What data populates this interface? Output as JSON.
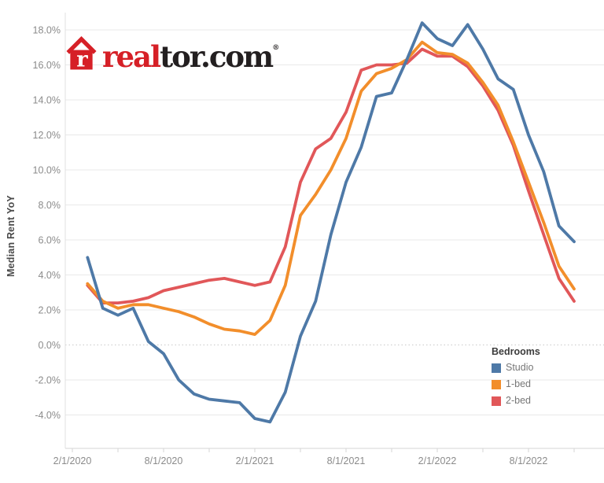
{
  "logo": {
    "brand_red": "real",
    "brand_black": "tor.com",
    "registered_mark": "®",
    "icon_color": "#d62027"
  },
  "y_axis": {
    "title": "Median Rent YoY"
  },
  "legend": {
    "title": "Bedrooms",
    "items": [
      {
        "label": "Studio",
        "color": "#4e79a7"
      },
      {
        "label": "1-bed",
        "color": "#f28e2b"
      },
      {
        "label": "2-bed",
        "color": "#e15759"
      }
    ]
  },
  "chart_data": {
    "type": "line",
    "title": "",
    "ylabel": "Median Rent YoY",
    "grid": true,
    "zero_line_style": "dotted",
    "legend_position": "right-lower",
    "ylim": [
      -5.9,
      19.7
    ],
    "x": [
      "3/1/2020",
      "4/1/2020",
      "5/1/2020",
      "6/1/2020",
      "7/1/2020",
      "8/1/2020",
      "9/1/2020",
      "10/1/2020",
      "11/1/2020",
      "12/1/2020",
      "1/1/2021",
      "2/1/2021",
      "3/1/2021",
      "4/1/2021",
      "5/1/2021",
      "6/1/2021",
      "7/1/2021",
      "8/1/2021",
      "9/1/2021",
      "10/1/2021",
      "11/1/2021",
      "12/1/2021",
      "1/1/2022",
      "2/1/2022",
      "3/1/2022",
      "4/1/2022",
      "5/1/2022",
      "6/1/2022",
      "7/1/2022",
      "8/1/2022",
      "9/1/2022",
      "10/1/2022",
      "11/1/2022"
    ],
    "series": [
      {
        "name": "Studio",
        "color": "#4e79a7",
        "values": [
          5.0,
          2.1,
          1.7,
          2.1,
          0.2,
          -0.5,
          -2.0,
          -2.8,
          -3.1,
          -3.2,
          -3.3,
          -4.2,
          -4.4,
          -2.7,
          0.5,
          2.5,
          6.3,
          9.3,
          11.3,
          14.2,
          14.4,
          16.3,
          18.4,
          17.5,
          17.1,
          18.3,
          16.9,
          15.2,
          14.6,
          12.0,
          9.9,
          6.8,
          5.9
        ]
      },
      {
        "name": "1-bed",
        "color": "#f28e2b",
        "values": [
          3.5,
          2.5,
          2.1,
          2.3,
          2.3,
          2.1,
          1.9,
          1.6,
          1.2,
          0.9,
          0.8,
          0.6,
          1.4,
          3.4,
          7.4,
          8.6,
          10.0,
          11.8,
          14.5,
          15.5,
          15.8,
          16.3,
          17.3,
          16.7,
          16.6,
          16.1,
          15.0,
          13.7,
          11.6,
          9.3,
          7.0,
          4.5,
          3.2
        ]
      },
      {
        "name": "2-bed",
        "color": "#e15759",
        "values": [
          3.4,
          2.4,
          2.4,
          2.5,
          2.7,
          3.1,
          3.3,
          3.5,
          3.7,
          3.8,
          3.6,
          3.4,
          3.6,
          5.6,
          9.3,
          11.2,
          11.8,
          13.3,
          15.7,
          16.0,
          16.0,
          16.1,
          16.9,
          16.5,
          16.5,
          15.9,
          14.8,
          13.4,
          11.4,
          8.8,
          6.3,
          3.8,
          2.5
        ]
      }
    ],
    "y_ticks": [
      {
        "v": 18,
        "label": "18.0%"
      },
      {
        "v": 16,
        "label": "16.0%"
      },
      {
        "v": 14,
        "label": "14.0%"
      },
      {
        "v": 12,
        "label": "12.0%"
      },
      {
        "v": 10,
        "label": "10.0%"
      },
      {
        "v": 8,
        "label": "8.0%"
      },
      {
        "v": 6,
        "label": "6.0%"
      },
      {
        "v": 4,
        "label": "4.0%"
      },
      {
        "v": 2,
        "label": "2.0%"
      },
      {
        "v": 0,
        "label": "0.0%"
      },
      {
        "v": -2,
        "label": "-2.0%"
      },
      {
        "v": -4,
        "label": "-4.0%"
      }
    ],
    "x_axis": {
      "first_tick": "2/1/2020",
      "minor_tick_step_months": 3,
      "labeled_ticks": [
        "2/1/2020",
        "8/1/2020",
        "2/1/2021",
        "8/1/2021",
        "2/1/2022",
        "8/1/2022"
      ]
    }
  }
}
